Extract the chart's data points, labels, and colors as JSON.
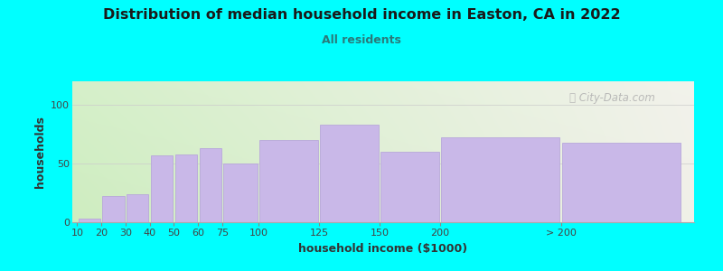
{
  "title": "Distribution of median household income in Easton, CA in 2022",
  "subtitle": "All residents",
  "xlabel": "household income ($1000)",
  "ylabel": "households",
  "background_color": "#00FFFF",
  "plot_bg_gradient_left": "#ceedc0",
  "plot_bg_gradient_right": "#f0f0e8",
  "bar_color": "#c9b8e8",
  "bar_edge_color": "#b8a8da",
  "title_color": "#1a1a1a",
  "subtitle_color": "#2a7a7a",
  "axis_label_color": "#333333",
  "tick_label_color": "#444444",
  "categories": [
    "10",
    "20",
    "30",
    "40",
    "50",
    "60",
    "75",
    "100",
    "125",
    "150",
    "200",
    "> 200"
  ],
  "values": [
    3,
    22,
    24,
    57,
    58,
    63,
    50,
    70,
    83,
    60,
    72,
    68
  ],
  "bar_widths": [
    10,
    10,
    10,
    10,
    10,
    10,
    15,
    25,
    25,
    25,
    50,
    50
  ],
  "bar_lefts": [
    0,
    10,
    20,
    30,
    40,
    50,
    60,
    75,
    100,
    125,
    150,
    200
  ],
  "xlim": [
    -2,
    255
  ],
  "ylim": [
    0,
    120
  ],
  "yticks": [
    0,
    50,
    100
  ],
  "watermark": "City-Data.com",
  "watermark_icon": "ⓘ",
  "grid_color": "#cccccc",
  "figsize": [
    8.0,
    3.0
  ],
  "dpi": 100
}
